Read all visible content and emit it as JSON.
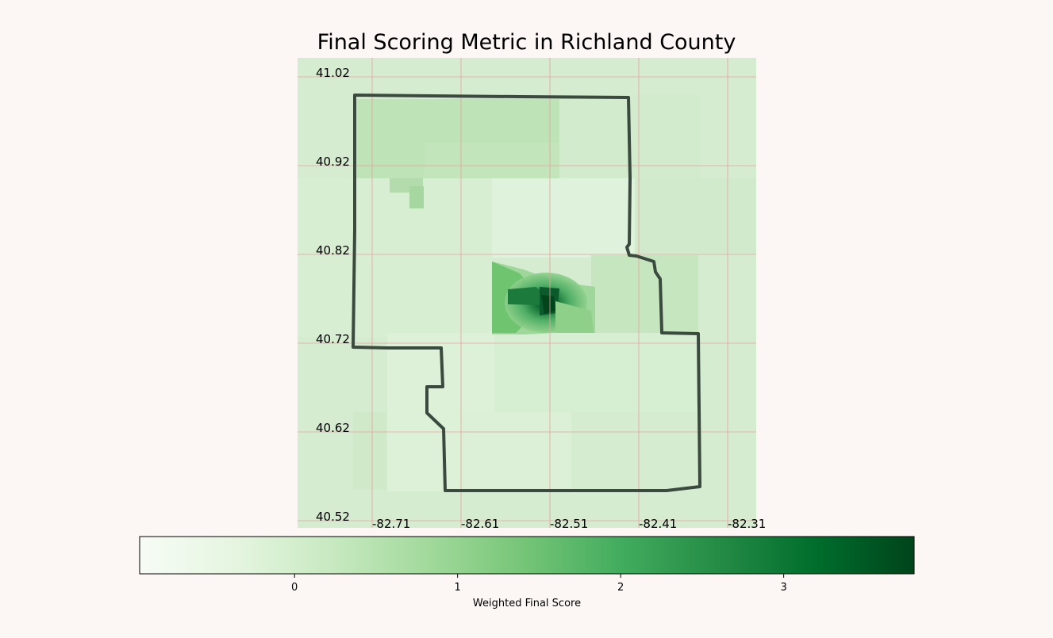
{
  "title": "Final Scoring Metric in Richland County",
  "map": {
    "lat_ticks": [
      "41.02",
      "40.92",
      "40.82",
      "40.72",
      "40.62",
      "40.52"
    ],
    "lon_ticks": [
      "-82.71",
      "-82.61",
      "-82.51",
      "-82.41",
      "-82.31"
    ],
    "grid_color": "#e8a0a0",
    "boundary_color": "#3a4a3e"
  },
  "colorbar": {
    "label": "Weighted Final Score",
    "ticks": [
      "0",
      "1",
      "2",
      "3"
    ],
    "tick_values": [
      0,
      1,
      2,
      3
    ],
    "range": [
      -0.95,
      3.8
    ],
    "colormap": "Greens",
    "colors": [
      "#f7fcf5",
      "#e5f5e0",
      "#c7e9c0",
      "#a1d99b",
      "#74c476",
      "#41ab5d",
      "#238b45",
      "#006d2c",
      "#00441b"
    ]
  }
}
